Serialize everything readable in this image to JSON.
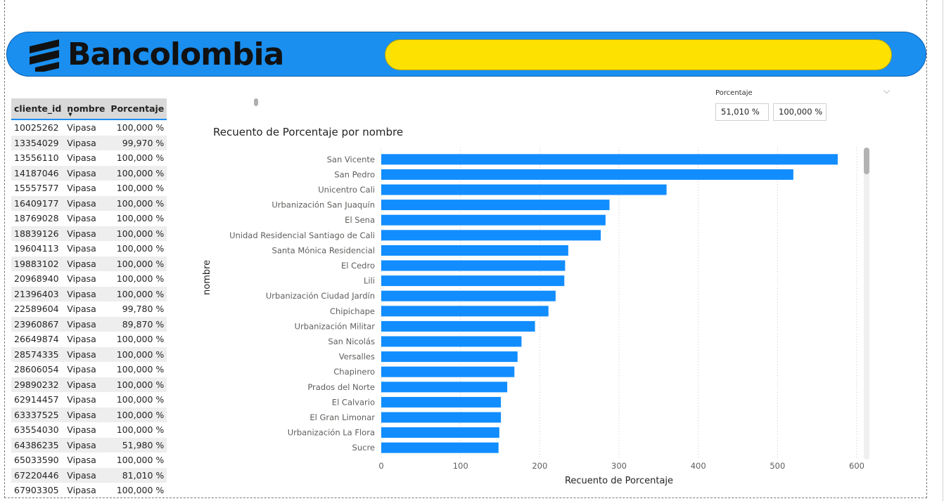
{
  "brand": {
    "name": "Bancolombia",
    "banner_color": "#1a8ff0",
    "accent_yellow": "#fde100"
  },
  "table": {
    "headers": [
      "cliente_id",
      "nombre",
      "Porcentaje"
    ],
    "rows": [
      [
        "10025262",
        "Vipasa",
        "100,000 %"
      ],
      [
        "13354029",
        "Vipasa",
        "99,970 %"
      ],
      [
        "13556110",
        "Vipasa",
        "100,000 %"
      ],
      [
        "14187046",
        "Vipasa",
        "100,000 %"
      ],
      [
        "15557577",
        "Vipasa",
        "100,000 %"
      ],
      [
        "16409177",
        "Vipasa",
        "100,000 %"
      ],
      [
        "18769028",
        "Vipasa",
        "100,000 %"
      ],
      [
        "18839126",
        "Vipasa",
        "100,000 %"
      ],
      [
        "19604113",
        "Vipasa",
        "100,000 %"
      ],
      [
        "19883102",
        "Vipasa",
        "100,000 %"
      ],
      [
        "20968940",
        "Vipasa",
        "100,000 %"
      ],
      [
        "21396403",
        "Vipasa",
        "100,000 %"
      ],
      [
        "22589604",
        "Vipasa",
        "99,780 %"
      ],
      [
        "23960867",
        "Vipasa",
        "89,870 %"
      ],
      [
        "26649874",
        "Vipasa",
        "100,000 %"
      ],
      [
        "28574335",
        "Vipasa",
        "100,000 %"
      ],
      [
        "28606054",
        "Vipasa",
        "100,000 %"
      ],
      [
        "29890232",
        "Vipasa",
        "100,000 %"
      ],
      [
        "62914457",
        "Vipasa",
        "100,000 %"
      ],
      [
        "63337525",
        "Vipasa",
        "100,000 %"
      ],
      [
        "63554030",
        "Vipasa",
        "100,000 %"
      ],
      [
        "64386235",
        "Vipasa",
        "51,980 %"
      ],
      [
        "65033590",
        "Vipasa",
        "100,000 %"
      ],
      [
        "67220446",
        "Vipasa",
        "81,010 %"
      ],
      [
        "67903305",
        "Vipasa",
        "100,000 %"
      ]
    ]
  },
  "slicer": {
    "title": "Porcentaje",
    "min": "51,010 %",
    "max": "100,000 %"
  },
  "chart_data": {
    "type": "bar",
    "orientation": "horizontal",
    "title": "Recuento de Porcentaje por nombre",
    "xlabel": "Recuento de Porcentaje",
    "ylabel": "nombre",
    "color": "#118dff",
    "xlim": [
      0,
      600
    ],
    "xticks": [
      0,
      100,
      200,
      300,
      400,
      500,
      600
    ],
    "grid": "vertical-dotted",
    "categories": [
      "San Vicente",
      "San Pedro",
      "Unicentro Cali",
      "Urbanización San Juaquín",
      "El Sena",
      "Unidad Residencial Santiago de Cali",
      "Santa Mónica Residencial",
      "El Cedro",
      "Lili",
      "Urbanización Ciudad Jardín",
      "Chipichape",
      "Urbanización Militar",
      "San Nicolás",
      "Versalles",
      "Chapinero",
      "Prados del Norte",
      "El Calvario",
      "El Gran Limonar",
      "Urbanización La Flora",
      "Sucre"
    ],
    "values": [
      576,
      520,
      360,
      288,
      283,
      277,
      236,
      232,
      231,
      220,
      211,
      194,
      177,
      172,
      168,
      159,
      151,
      151,
      149,
      148
    ]
  }
}
